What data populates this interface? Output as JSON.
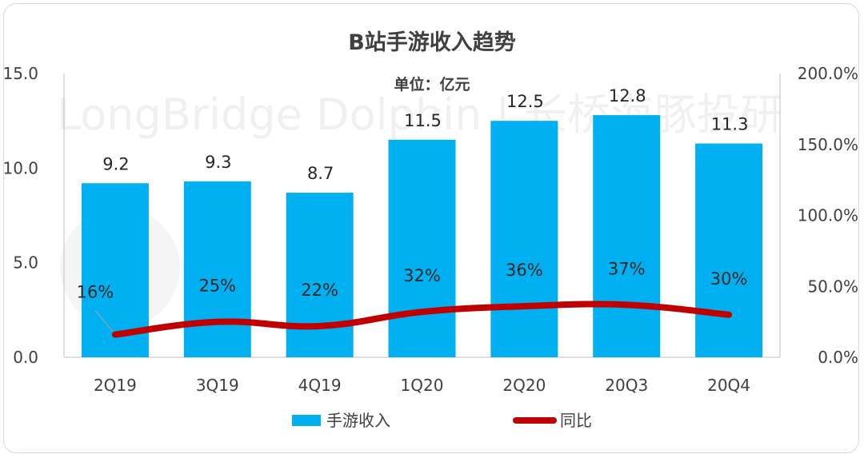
{
  "chart_data": {
    "type": "bar",
    "title": "B站手游收入趋势",
    "subtitle": "单位：亿元",
    "watermark": "LongBridge Dolphin | 长桥海豚投研",
    "categories": [
      "2Q19",
      "3Q19",
      "4Q19",
      "1Q20",
      "2Q20",
      "20Q3",
      "20Q4"
    ],
    "series": [
      {
        "name": "手游收入",
        "type": "bar",
        "axis": "left",
        "values": [
          9.2,
          9.3,
          8.7,
          11.5,
          12.5,
          12.8,
          11.3
        ],
        "labels": [
          "9.2",
          "9.3",
          "8.7",
          "11.5",
          "12.5",
          "12.8",
          "11.3"
        ],
        "color": "#00B0F0"
      },
      {
        "name": "同比",
        "type": "line",
        "axis": "right",
        "values": [
          16,
          25,
          22,
          32,
          36,
          37,
          30
        ],
        "labels": [
          "16%",
          "25%",
          "22%",
          "32%",
          "36%",
          "37%",
          "30%"
        ],
        "color": "#C00000"
      }
    ],
    "ylim": [
      0,
      15
    ],
    "yticks": [
      "0.0",
      "5.0",
      "10.0",
      "15.0"
    ],
    "y2lim": [
      0,
      200
    ],
    "y2ticks": [
      "0.0%",
      "50.0%",
      "100.0%",
      "150.0%",
      "200.0%"
    ],
    "legend": "bottom",
    "grid": false
  }
}
